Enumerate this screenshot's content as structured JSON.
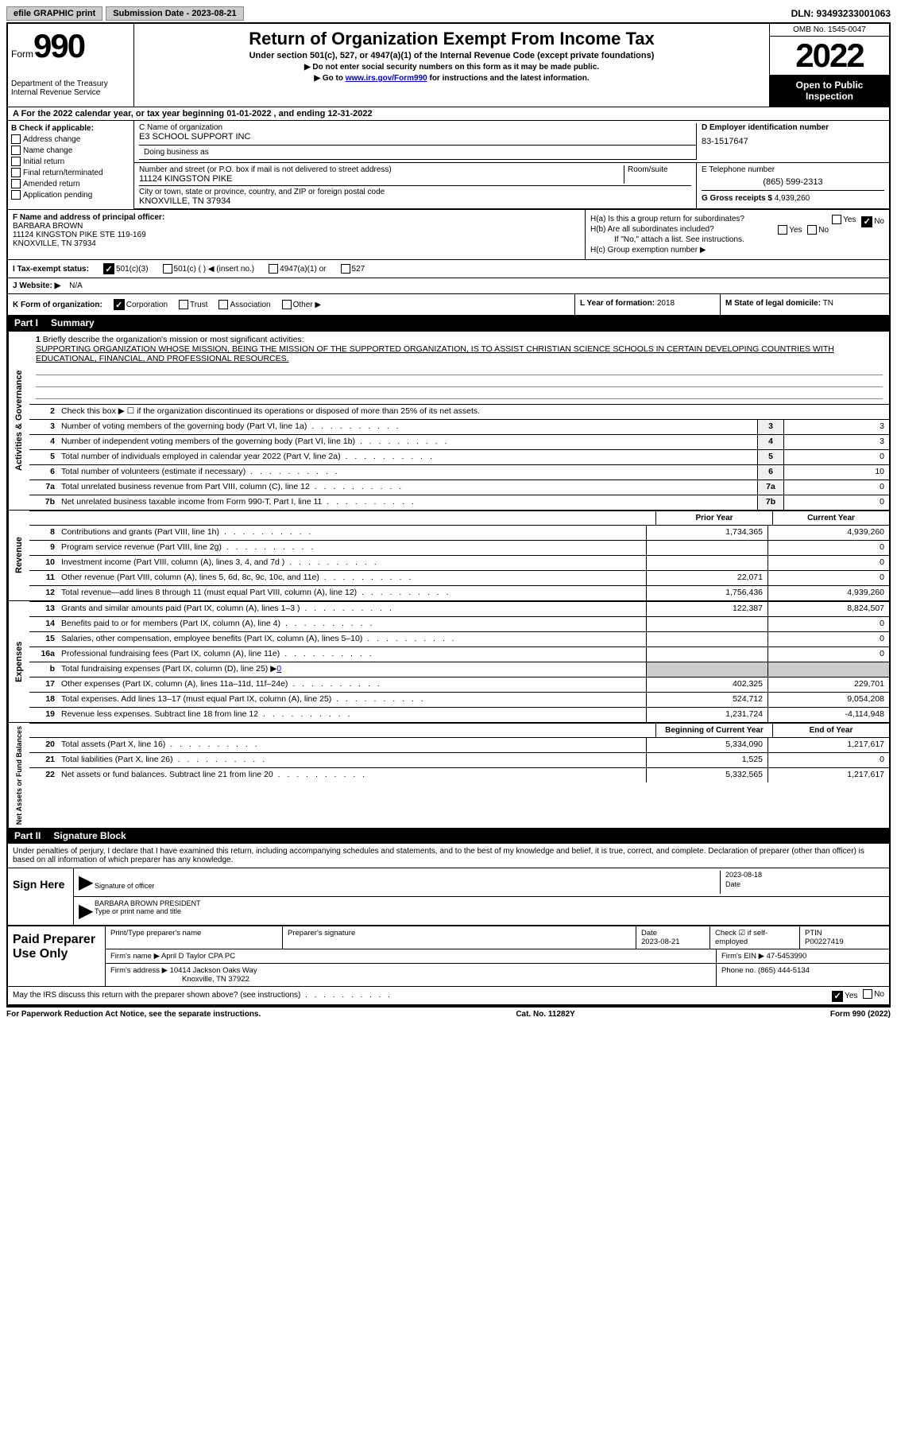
{
  "topbar": {
    "efile": "efile GRAPHIC print",
    "submission_label": "Submission Date - 2023-08-21",
    "dln": "DLN: 93493233001063"
  },
  "header": {
    "form_label": "Form",
    "form_num": "990",
    "dept": "Department of the Treasury Internal Revenue Service",
    "title": "Return of Organization Exempt From Income Tax",
    "subtitle": "Under section 501(c), 527, or 4947(a)(1) of the Internal Revenue Code (except private foundations)",
    "notice1": "▶ Do not enter social security numbers on this form as it may be made public.",
    "notice2_pre": "▶ Go to ",
    "notice2_link": "www.irs.gov/Form990",
    "notice2_post": " for instructions and the latest information.",
    "omb": "OMB No. 1545-0047",
    "year": "2022",
    "open": "Open to Public Inspection"
  },
  "lineA": "A  For the 2022 calendar year, or tax year beginning 01-01-2022    , and ending 12-31-2022",
  "secB": {
    "label": "B Check if applicable:",
    "items": [
      "Address change",
      "Name change",
      "Initial return",
      "Final return/terminated",
      "Amended return",
      "Application pending"
    ]
  },
  "secC": {
    "name_label": "C Name of organization",
    "name": "E3 SCHOOL SUPPORT INC",
    "dba_label": "Doing business as",
    "addr_label": "Number and street (or P.O. box if mail is not delivered to street address)",
    "room_label": "Room/suite",
    "addr": "11124 KINGSTON PIKE",
    "city_label": "City or town, state or province, country, and ZIP or foreign postal code",
    "city": "KNOXVILLE, TN  37934"
  },
  "secD": {
    "label": "D Employer identification number",
    "val": "83-1517647"
  },
  "secE": {
    "label": "E Telephone number",
    "val": "(865) 599-2313"
  },
  "secG": {
    "label": "G Gross receipts $",
    "val": "4,939,260"
  },
  "secF": {
    "label": "F Name and address of principal officer:",
    "l1": "BARBARA BROWN",
    "l2": "11124 KINGSTON PIKE STE 119-169",
    "l3": "KNOXVILLE, TN  37934"
  },
  "secH": {
    "a": "H(a)  Is this a group return for subordinates?",
    "b": "H(b)  Are all subordinates included?",
    "b_note": "If \"No,\" attach a list. See instructions.",
    "c": "H(c)  Group exemption number ▶",
    "yes": "Yes",
    "no": "No"
  },
  "secI": {
    "label": "I  Tax-exempt status:",
    "o1": "501(c)(3)",
    "o2": "501(c) (  ) ◀ (insert no.)",
    "o3": "4947(a)(1) or",
    "o4": "527"
  },
  "secJ": {
    "label": "J  Website: ▶",
    "val": "N/A"
  },
  "secK": {
    "label": "K Form of organization:",
    "o1": "Corporation",
    "o2": "Trust",
    "o3": "Association",
    "o4": "Other ▶"
  },
  "secL": {
    "label": "L Year of formation:",
    "val": "2018"
  },
  "secM": {
    "label": "M State of legal domicile:",
    "val": "TN"
  },
  "part1": {
    "num": "Part I",
    "title": "Summary"
  },
  "sideLabels": {
    "ag": "Activities & Governance",
    "rev": "Revenue",
    "exp": "Expenses",
    "nafb": "Net Assets or Fund Balances"
  },
  "mission": {
    "label": "Briefly describe the organization's mission or most significant activities:",
    "text": "SUPPORTING ORGANIZATION WHOSE MISSION, BEING THE MISSION OF THE SUPPORTED ORGANIZATION, IS TO ASSIST CHRISTIAN SCIENCE SCHOOLS IN CERTAIN DEVELOPING COUNTRIES WITH EDUCATIONAL, FINANCIAL, AND PROFESSIONAL RESOURCES."
  },
  "line2": "Check this box ▶ ☐  if the organization discontinued its operations or disposed of more than 25% of its net assets.",
  "sumLines": [
    {
      "n": "3",
      "t": "Number of voting members of the governing body (Part VI, line 1a)",
      "b": "3",
      "v": "3"
    },
    {
      "n": "4",
      "t": "Number of independent voting members of the governing body (Part VI, line 1b)",
      "b": "4",
      "v": "3"
    },
    {
      "n": "5",
      "t": "Total number of individuals employed in calendar year 2022 (Part V, line 2a)",
      "b": "5",
      "v": "0"
    },
    {
      "n": "6",
      "t": "Total number of volunteers (estimate if necessary)",
      "b": "6",
      "v": "10"
    },
    {
      "n": "7a",
      "t": "Total unrelated business revenue from Part VIII, column (C), line 12",
      "b": "7a",
      "v": "0"
    },
    {
      "n": "7b",
      "t": "Net unrelated business taxable income from Form 990-T, Part I, line 11",
      "b": "7b",
      "v": "0"
    }
  ],
  "colHeaders": {
    "prior": "Prior Year",
    "current": "Current Year",
    "begin": "Beginning of Current Year",
    "end": "End of Year"
  },
  "revLines": [
    {
      "n": "8",
      "t": "Contributions and grants (Part VIII, line 1h)",
      "p": "1,734,365",
      "c": "4,939,260"
    },
    {
      "n": "9",
      "t": "Program service revenue (Part VIII, line 2g)",
      "p": "",
      "c": "0"
    },
    {
      "n": "10",
      "t": "Investment income (Part VIII, column (A), lines 3, 4, and 7d )",
      "p": "",
      "c": "0"
    },
    {
      "n": "11",
      "t": "Other revenue (Part VIII, column (A), lines 5, 6d, 8c, 9c, 10c, and 11e)",
      "p": "22,071",
      "c": "0"
    },
    {
      "n": "12",
      "t": "Total revenue—add lines 8 through 11 (must equal Part VIII, column (A), line 12)",
      "p": "1,756,436",
      "c": "4,939,260"
    }
  ],
  "expLines": [
    {
      "n": "13",
      "t": "Grants and similar amounts paid (Part IX, column (A), lines 1–3 )",
      "p": "122,387",
      "c": "8,824,507"
    },
    {
      "n": "14",
      "t": "Benefits paid to or for members (Part IX, column (A), line 4)",
      "p": "",
      "c": "0"
    },
    {
      "n": "15",
      "t": "Salaries, other compensation, employee benefits (Part IX, column (A), lines 5–10)",
      "p": "",
      "c": "0"
    },
    {
      "n": "16a",
      "t": "Professional fundraising fees (Part IX, column (A), line 11e)",
      "p": "",
      "c": "0"
    }
  ],
  "line16b": {
    "n": "b",
    "t": "Total fundraising expenses (Part IX, column (D), line 25) ▶",
    "v": "0"
  },
  "expLines2": [
    {
      "n": "17",
      "t": "Other expenses (Part IX, column (A), lines 11a–11d, 11f–24e)",
      "p": "402,325",
      "c": "229,701"
    },
    {
      "n": "18",
      "t": "Total expenses. Add lines 13–17 (must equal Part IX, column (A), line 25)",
      "p": "524,712",
      "c": "9,054,208"
    },
    {
      "n": "19",
      "t": "Revenue less expenses. Subtract line 18 from line 12",
      "p": "1,231,724",
      "c": "-4,114,948"
    }
  ],
  "nafbLines": [
    {
      "n": "20",
      "t": "Total assets (Part X, line 16)",
      "p": "5,334,090",
      "c": "1,217,617"
    },
    {
      "n": "21",
      "t": "Total liabilities (Part X, line 26)",
      "p": "1,525",
      "c": "0"
    },
    {
      "n": "22",
      "t": "Net assets or fund balances. Subtract line 21 from line 20",
      "p": "5,332,565",
      "c": "1,217,617"
    }
  ],
  "part2": {
    "num": "Part II",
    "title": "Signature Block"
  },
  "sigDecl": "Under penalties of perjury, I declare that I have examined this return, including accompanying schedules and statements, and to the best of my knowledge and belief, it is true, correct, and complete. Declaration of preparer (other than officer) is based on all information of which preparer has any knowledge.",
  "sig": {
    "here": "Sign Here",
    "date": "2023-08-18",
    "sig_label": "Signature of officer",
    "date_label": "Date",
    "name": "BARBARA BROWN  PRESIDENT",
    "name_label": "Type or print name and title"
  },
  "paid": {
    "label": "Paid Preparer Use Only",
    "h1": "Print/Type preparer's name",
    "h2": "Preparer's signature",
    "h3_label": "Date",
    "h3": "2023-08-21",
    "h4_label": "Check ☑ if self-employed",
    "h5_label": "PTIN",
    "h5": "P00227419",
    "firm_label": "Firm's name    ▶",
    "firm": "April D Taylor CPA PC",
    "ein_label": "Firm's EIN ▶",
    "ein": "47-5453990",
    "addr_label": "Firm's address ▶",
    "addr1": "10414 Jackson Oaks Way",
    "addr2": "Knoxville, TN  37922",
    "phone_label": "Phone no.",
    "phone": "(865) 444-5134"
  },
  "discuss": "May the IRS discuss this return with the preparer shown above? (see instructions)",
  "footer": {
    "left": "For Paperwork Reduction Act Notice, see the separate instructions.",
    "mid": "Cat. No. 11282Y",
    "right": "Form 990 (2022)"
  }
}
